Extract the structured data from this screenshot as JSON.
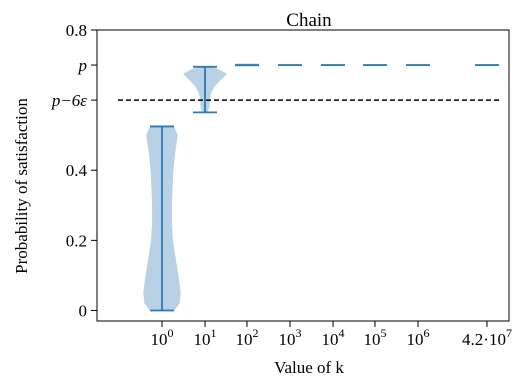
{
  "chart_data": {
    "type": "violin",
    "title": "Chain",
    "xlabel": "Value of k",
    "ylabel": "Probability of satisfaction",
    "ylim": [
      -0.03,
      0.8
    ],
    "y_ticks": [
      {
        "value": 0,
        "label": "0"
      },
      {
        "value": 0.2,
        "label": "0.2"
      },
      {
        "value": 0.4,
        "label": "0.4"
      },
      {
        "value": 0.6,
        "label": "p−6ε"
      },
      {
        "value": 0.7,
        "label": "p"
      },
      {
        "value": 0.8,
        "label": "0.8"
      }
    ],
    "categories": [
      {
        "base": "10",
        "exp": "0"
      },
      {
        "base": "10",
        "exp": "1"
      },
      {
        "base": "10",
        "exp": "2"
      },
      {
        "base": "10",
        "exp": "3"
      },
      {
        "base": "10",
        "exp": "4"
      },
      {
        "base": "10",
        "exp": "5"
      },
      {
        "base": "10",
        "exp": "6"
      },
      {
        "base": "4.2·10",
        "exp": "7"
      }
    ],
    "violins": [
      {
        "min": 0.0,
        "max": 0.525,
        "density": [
          [
            0.0,
            0.55
          ],
          [
            0.02,
            0.8
          ],
          [
            0.05,
            0.85
          ],
          [
            0.1,
            0.75
          ],
          [
            0.15,
            0.62
          ],
          [
            0.2,
            0.5
          ],
          [
            0.25,
            0.45
          ],
          [
            0.3,
            0.45
          ],
          [
            0.35,
            0.48
          ],
          [
            0.4,
            0.52
          ],
          [
            0.45,
            0.6
          ],
          [
            0.5,
            0.72
          ],
          [
            0.525,
            0.55
          ]
        ]
      },
      {
        "min": 0.565,
        "max": 0.695,
        "density": [
          [
            0.565,
            0.12
          ],
          [
            0.58,
            0.2
          ],
          [
            0.6,
            0.22
          ],
          [
            0.62,
            0.28
          ],
          [
            0.64,
            0.45
          ],
          [
            0.66,
            0.75
          ],
          [
            0.675,
            1.0
          ],
          [
            0.69,
            0.55
          ],
          [
            0.695,
            0.2
          ]
        ]
      },
      {
        "min": 0.699,
        "max": 0.701,
        "flat": true
      },
      {
        "min": 0.7,
        "max": 0.7,
        "flat": true
      },
      {
        "min": 0.7,
        "max": 0.7,
        "flat": true
      },
      {
        "min": 0.7,
        "max": 0.7,
        "flat": true
      },
      {
        "min": 0.7,
        "max": 0.7,
        "flat": true
      },
      {
        "min": 0.7,
        "max": 0.7,
        "flat": true
      }
    ],
    "reference_line": {
      "y": 0.6,
      "style": "dashed",
      "color": "#000000"
    },
    "colors": {
      "body": "#b9d1e4",
      "line": "#2b79b5"
    },
    "grid": false
  }
}
